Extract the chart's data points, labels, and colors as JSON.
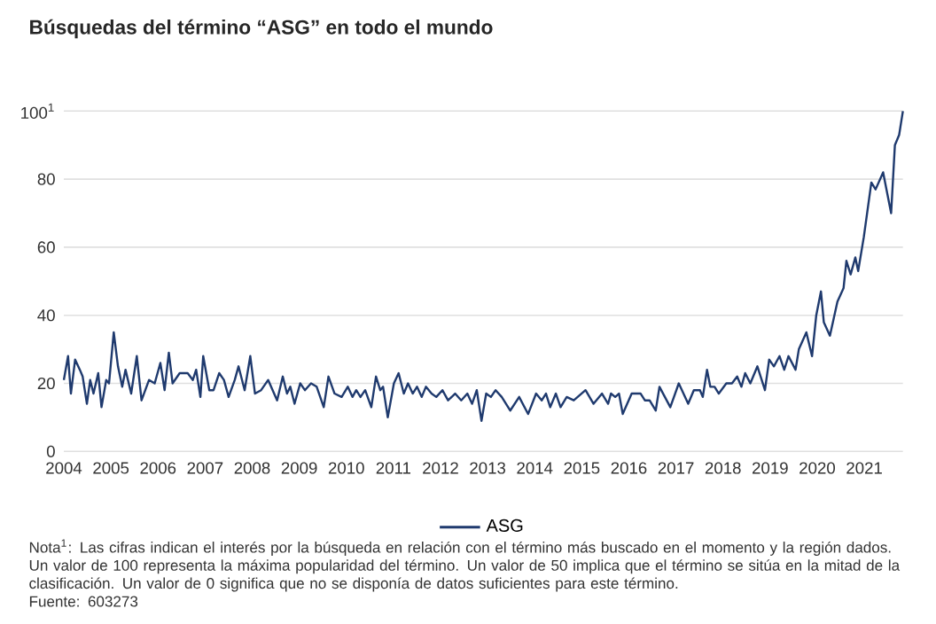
{
  "chart_data": {
    "type": "line",
    "title": "Búsquedas del término “ASG” en todo el mundo",
    "x": [
      2004.0,
      2004.09,
      2004.15,
      2004.24,
      2004.34,
      2004.4,
      2004.49,
      2004.56,
      2004.63,
      2004.73,
      2004.8,
      2004.9,
      2004.96,
      2005.06,
      2005.15,
      2005.24,
      2005.31,
      2005.43,
      2005.55,
      2005.65,
      2005.81,
      2005.93,
      2006.05,
      2006.14,
      2006.23,
      2006.31,
      2006.46,
      2006.63,
      2006.74,
      2006.81,
      2006.9,
      2006.96,
      2007.09,
      2007.18,
      2007.3,
      2007.4,
      2007.5,
      2007.63,
      2007.71,
      2007.84,
      2007.96,
      2008.06,
      2008.19,
      2008.34,
      2008.53,
      2008.65,
      2008.74,
      2008.81,
      2008.9,
      2009.02,
      2009.12,
      2009.25,
      2009.37,
      2009.52,
      2009.62,
      2009.75,
      2009.9,
      2010.03,
      2010.13,
      2010.21,
      2010.3,
      2010.4,
      2010.53,
      2010.63,
      2010.72,
      2010.78,
      2010.88,
      2011.01,
      2011.11,
      2011.22,
      2011.31,
      2011.41,
      2011.5,
      2011.6,
      2011.69,
      2011.81,
      2011.91,
      2012.04,
      2012.16,
      2012.31,
      2012.44,
      2012.57,
      2012.67,
      2012.77,
      2012.87,
      2012.97,
      2013.07,
      2013.17,
      2013.3,
      2013.48,
      2013.67,
      2013.86,
      2014.03,
      2014.15,
      2014.24,
      2014.33,
      2014.45,
      2014.55,
      2014.68,
      2014.83,
      2015.08,
      2015.25,
      2015.43,
      2015.56,
      2015.62,
      2015.71,
      2015.79,
      2015.87,
      2016.06,
      2016.25,
      2016.34,
      2016.44,
      2016.57,
      2016.65,
      2016.88,
      2017.06,
      2017.26,
      2017.38,
      2017.51,
      2017.57,
      2017.66,
      2017.73,
      2017.82,
      2017.91,
      2018.07,
      2018.19,
      2018.3,
      2018.39,
      2018.47,
      2018.58,
      2018.73,
      2018.89,
      2018.98,
      2019.08,
      2019.2,
      2019.3,
      2019.39,
      2019.54,
      2019.61,
      2019.77,
      2019.89,
      2019.98,
      2020.08,
      2020.14,
      2020.27,
      2020.43,
      2020.56,
      2020.62,
      2020.71,
      2020.81,
      2020.87,
      2020.99,
      2021.15,
      2021.24,
      2021.4,
      2021.57,
      2021.65,
      2021.74,
      2021.82
    ],
    "series": [
      {
        "name": "ASG",
        "color": "#1f3a6e",
        "values": [
          21,
          28,
          17,
          27,
          24,
          22,
          14,
          21,
          17,
          23,
          13,
          21,
          20,
          35,
          25,
          19,
          24,
          17,
          28,
          15,
          21,
          20,
          26,
          18,
          29,
          20,
          23,
          23,
          21,
          24,
          16,
          28,
          18,
          18,
          23,
          21,
          16,
          21,
          25,
          18,
          28,
          17,
          18,
          21,
          15,
          22,
          17,
          19,
          14,
          20,
          18,
          20,
          19,
          13,
          22,
          17,
          16,
          19,
          16,
          18,
          16,
          18,
          13,
          22,
          18,
          19,
          10,
          20,
          23,
          17,
          20,
          17,
          19,
          16,
          19,
          17,
          16,
          18,
          15,
          17,
          15,
          17,
          14,
          18,
          9,
          17,
          16,
          18,
          16,
          12,
          16,
          11,
          17,
          15,
          17,
          13,
          17,
          13,
          16,
          15,
          18,
          14,
          17,
          14,
          17,
          16,
          17,
          11,
          17,
          17,
          15,
          15,
          12,
          19,
          13,
          20,
          14,
          18,
          18,
          16,
          24,
          19,
          19,
          17,
          20,
          20,
          22,
          19,
          23,
          20,
          25,
          18,
          27,
          25,
          28,
          24,
          28,
          24,
          30,
          35,
          28,
          40,
          47,
          38,
          34,
          44,
          48,
          56,
          52,
          57,
          53,
          63,
          79,
          77,
          82,
          70,
          90,
          93,
          100
        ]
      }
    ],
    "xlim": [
      2004.0,
      2021.82
    ],
    "ylim": [
      0,
      100
    ],
    "xticks": [
      2004,
      2005,
      2006,
      2007,
      2008,
      2009,
      2010,
      2011,
      2012,
      2013,
      2014,
      2015,
      2016,
      2017,
      2018,
      2019,
      2020,
      2021
    ],
    "yticks": [
      0,
      20,
      40,
      60,
      80,
      {
        "value": 100,
        "label": "100$^{1}$"
      }
    ],
    "grid": "y",
    "legend": "bottom",
    "line_style": "solid",
    "annotations": [
      "Nota$^{1}$: Las cifras indican el interés por la búsqueda en relación con el término más buscado en el momento y la región dados. Un valor de 100 representa la máxima popularidad del término. Un valor de 50 implica que el término se sitúa en la mitad de la clasificación. Un valor de 0 significa que no se disponía de datos suficientes para este término.",
      "Fuente: 603273"
    ]
  }
}
